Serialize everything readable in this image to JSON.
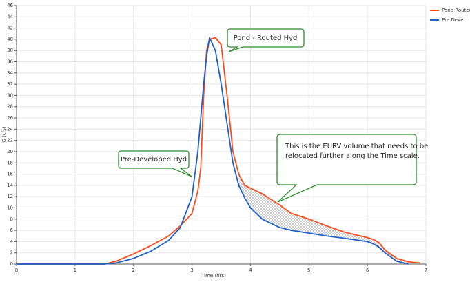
{
  "chart_data": {
    "type": "line",
    "x_label": "Time (hrs)",
    "y_label": "Q (cfs)",
    "x": [
      0,
      1.5,
      1.7,
      2.0,
      2.3,
      2.6,
      2.8,
      3.0,
      3.1,
      3.15,
      3.2,
      3.25,
      3.3,
      3.4,
      3.5,
      3.6,
      3.7,
      3.8,
      3.9,
      4.0,
      4.2,
      4.5,
      4.7,
      5.0,
      5.3,
      5.6,
      6.0,
      6.1,
      6.2,
      6.3,
      6.5,
      6.7,
      6.9
    ],
    "series": [
      {
        "name": "Pond Routed",
        "color": "#ff4a1c",
        "values": [
          0,
          0,
          0.5,
          1.8,
          3.3,
          5,
          6.8,
          9,
          13,
          17,
          30,
          38,
          40,
          40.3,
          39,
          30,
          20,
          16,
          14,
          13.5,
          12.5,
          10.5,
          9,
          8,
          6.8,
          5.7,
          4.7,
          4.4,
          3.8,
          2.5,
          1,
          0.4,
          0.2
        ]
      },
      {
        "name": "Pre Devel",
        "color": "#1e5fc8",
        "values": [
          0,
          0,
          0.2,
          1,
          2.3,
          4.2,
          6.5,
          12,
          20,
          26,
          32,
          37,
          40.3,
          38,
          32,
          25,
          18,
          14,
          11.8,
          10,
          8,
          6.5,
          6,
          5.5,
          5,
          4.6,
          4.0,
          3.6,
          3,
          2,
          0.5,
          0,
          null
        ]
      }
    ],
    "xlim": [
      0,
      7
    ],
    "xticks": [
      0,
      1,
      2,
      3,
      4,
      5,
      6,
      7
    ],
    "ylim": [
      0,
      46
    ],
    "yticks": [
      0,
      2,
      4,
      6,
      8,
      10,
      12,
      14,
      16,
      18,
      20,
      22,
      24,
      26,
      28,
      30,
      32,
      34,
      36,
      38,
      40,
      42,
      44,
      46
    ],
    "grid": true,
    "legend": "right",
    "annotations": {
      "pond": "Pond - Routed Hyd",
      "pre": "Pre-Developed Hyd",
      "eurv": [
        "This is the EURV volume that needs to be",
        "relocated further along the Time scale."
      ]
    }
  }
}
